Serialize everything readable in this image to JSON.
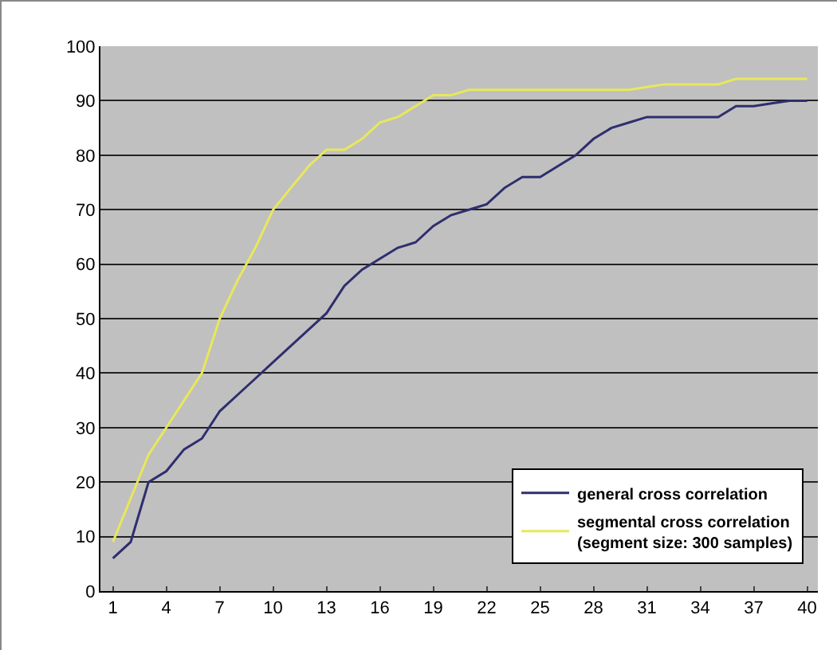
{
  "chart_data": {
    "type": "line",
    "x": [
      1,
      2,
      3,
      4,
      5,
      6,
      7,
      8,
      9,
      10,
      11,
      12,
      13,
      14,
      15,
      16,
      17,
      18,
      19,
      20,
      21,
      22,
      23,
      24,
      25,
      26,
      27,
      28,
      29,
      30,
      31,
      32,
      33,
      34,
      35,
      36,
      37,
      38,
      39,
      40
    ],
    "series": [
      {
        "name": "general cross correlation",
        "color": "#2e2e6e",
        "values": [
          6,
          9,
          20,
          22,
          26,
          28,
          33,
          36,
          39,
          42,
          45,
          48,
          51,
          56,
          59,
          61,
          63,
          64,
          67,
          69,
          70,
          71,
          74,
          76,
          76,
          78,
          80,
          83,
          85,
          86,
          87,
          87,
          87,
          87,
          87,
          89,
          89,
          89.5,
          90,
          90
        ]
      },
      {
        "name": "segmental cross correlation\n(segment size: 300 samples)",
        "color": "#e8e85a",
        "values": [
          9,
          17,
          25,
          30,
          35,
          40,
          50,
          57,
          63,
          70,
          74,
          78,
          81,
          81,
          83,
          86,
          87,
          89,
          91,
          91,
          92,
          92,
          92,
          92,
          92,
          92,
          92,
          92,
          92,
          92,
          92.5,
          93,
          93,
          93,
          93,
          94,
          94,
          94,
          94,
          94
        ]
      }
    ],
    "xlim": [
      0.3,
      40.6
    ],
    "xticks": [
      1,
      4,
      7,
      10,
      13,
      16,
      19,
      22,
      25,
      28,
      31,
      34,
      37,
      40
    ],
    "ylim": [
      0,
      100
    ],
    "yticks": [
      0,
      10,
      20,
      30,
      40,
      50,
      60,
      70,
      80,
      90,
      100
    ],
    "grid": "y",
    "legend": "bottom right",
    "marker": "none",
    "line_style": "solid"
  }
}
